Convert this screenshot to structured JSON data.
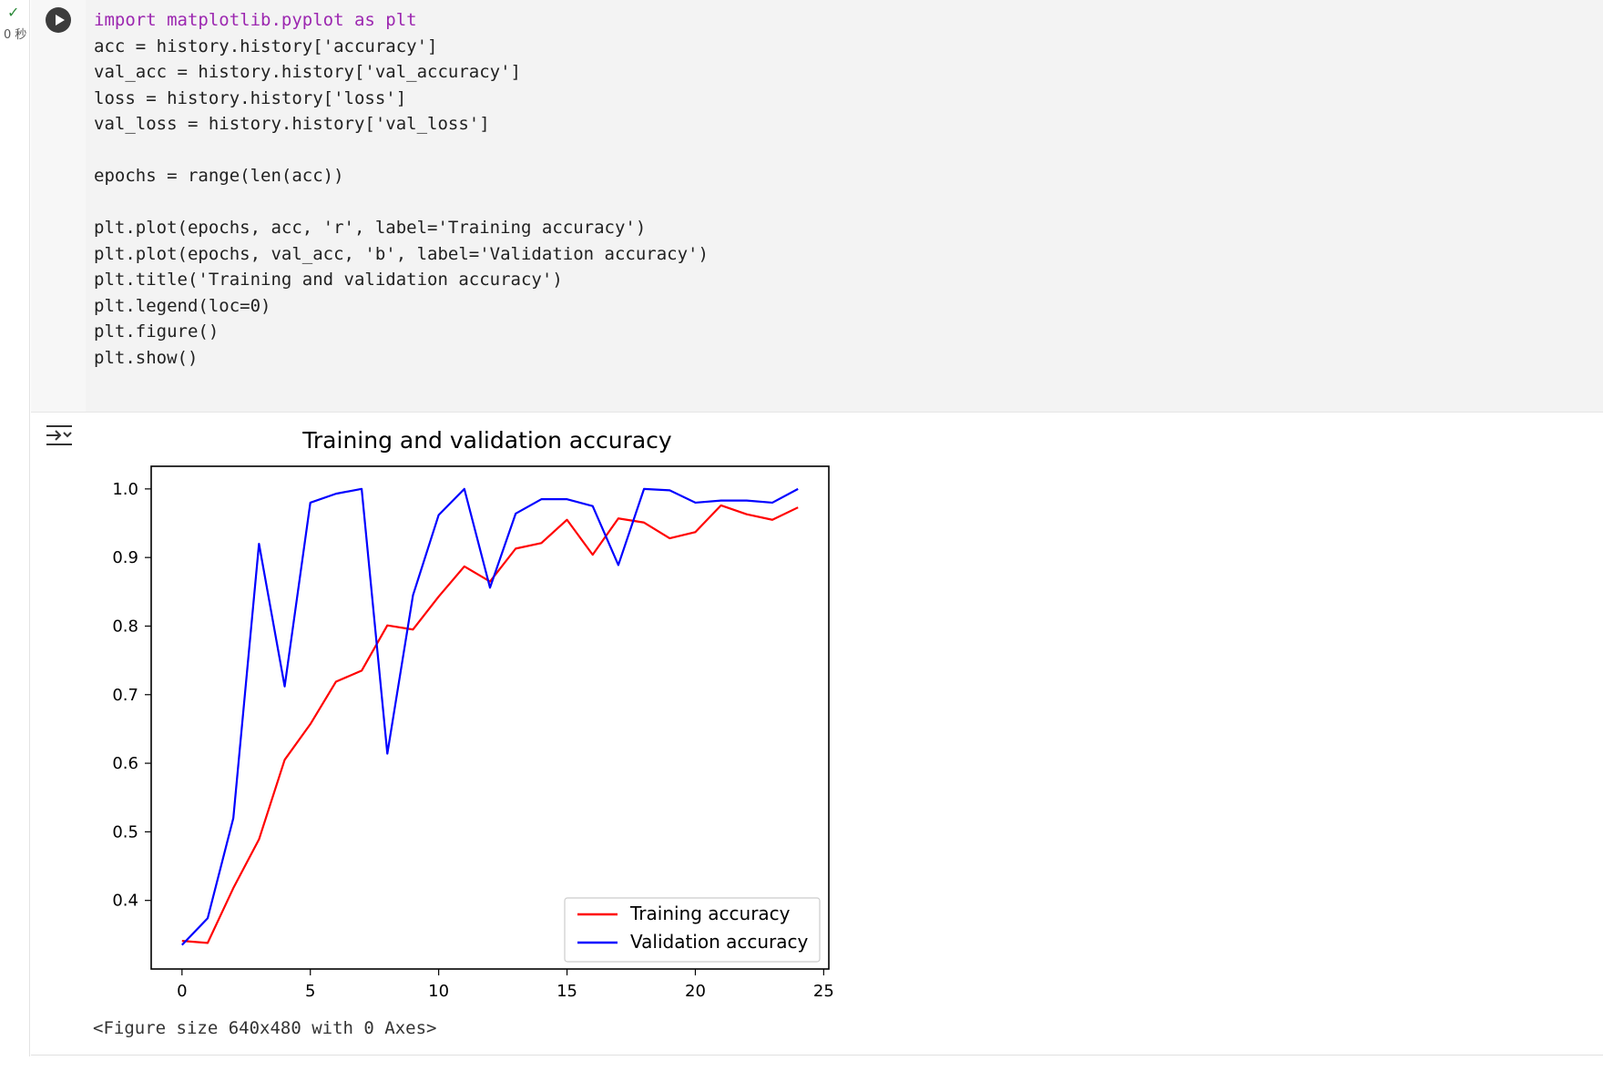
{
  "execution": {
    "status_icon": "check-icon",
    "time_label": "0 秒"
  },
  "code": {
    "lines": [
      "import matplotlib.pyplot as plt",
      "acc = history.history['accuracy']",
      "val_acc = history.history['val_accuracy']",
      "loss = history.history['loss']",
      "val_loss = history.history['val_loss']",
      "",
      "epochs = range(len(acc))",
      "",
      "plt.plot(epochs, acc, 'r', label='Training accuracy')",
      "plt.plot(epochs, val_acc, 'b', label='Validation accuracy')",
      "plt.title('Training and validation accuracy')",
      "plt.legend(loc=0)",
      "plt.figure()",
      "plt.show()"
    ]
  },
  "output": {
    "figure_caption": "<Figure size 640x480 with 0 Axes>"
  },
  "chart_data": {
    "type": "line",
    "title": "Training and validation accuracy",
    "xlabel": "",
    "ylabel": "",
    "xlim": [
      -1.2,
      25.2
    ],
    "ylim": [
      0.3,
      1.033
    ],
    "x_ticks": [
      0,
      5,
      10,
      15,
      20,
      25
    ],
    "y_ticks": [
      0.4,
      0.5,
      0.6,
      0.7,
      0.8,
      0.9,
      1.0
    ],
    "y_tick_labels": [
      "0.4",
      "0.5",
      "0.6",
      "0.7",
      "0.8",
      "0.9",
      "1.0"
    ],
    "legend_position": "lower-right",
    "grid": false,
    "x": [
      0,
      1,
      2,
      3,
      4,
      5,
      6,
      7,
      8,
      9,
      10,
      11,
      12,
      13,
      14,
      15,
      16,
      17,
      18,
      19,
      20,
      21,
      22,
      23,
      24
    ],
    "series": [
      {
        "name": "Training accuracy",
        "color": "#ff0000",
        "values": [
          0.341,
          0.338,
          0.418,
          0.489,
          0.605,
          0.657,
          0.719,
          0.735,
          0.801,
          0.795,
          0.843,
          0.887,
          0.865,
          0.913,
          0.921,
          0.955,
          0.904,
          0.957,
          0.951,
          0.928,
          0.937,
          0.976,
          0.963,
          0.955,
          0.973
        ]
      },
      {
        "name": "Validation accuracy",
        "color": "#0000ff",
        "values": [
          0.335,
          0.374,
          0.52,
          0.92,
          0.712,
          0.98,
          0.993,
          1.0,
          0.614,
          0.845,
          0.962,
          1.0,
          0.856,
          0.964,
          0.985,
          0.985,
          0.975,
          0.889,
          1.0,
          0.998,
          0.98,
          0.983,
          0.983,
          0.98,
          1.0
        ]
      }
    ]
  }
}
